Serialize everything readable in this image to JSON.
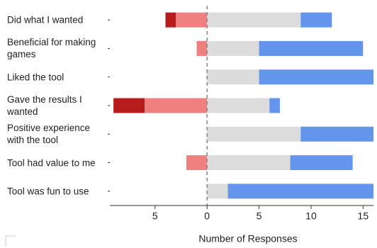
{
  "chart_data": {
    "type": "diverging_bar",
    "x_label": "Number of Responses",
    "categories": [
      "Did what I wanted",
      "Beneficial for making\ngames",
      "Liked the tool",
      "Gave the results I\nwanted",
      "Positive experience\nwith the tool",
      "Tool had value to me",
      "Tool was fun to use"
    ],
    "series": [
      {
        "color": "#f08080",
        "values": [
          -3,
          -1,
          0,
          -6,
          0,
          -2,
          0
        ]
      },
      {
        "color": "#b71c1c",
        "values": [
          -1,
          0,
          0,
          -3,
          0,
          0,
          0
        ]
      },
      {
        "color": "#dcdcdc",
        "values": [
          9,
          5,
          5,
          6,
          9,
          8,
          2
        ]
      },
      {
        "color": "#6495ed",
        "values": [
          3,
          10,
          11,
          1,
          7,
          6,
          14
        ]
      }
    ],
    "xlim": [
      -9.35,
      16
    ],
    "xticks": [
      {
        "value": -5,
        "label": "5"
      },
      0,
      5,
      10,
      15
    ]
  }
}
